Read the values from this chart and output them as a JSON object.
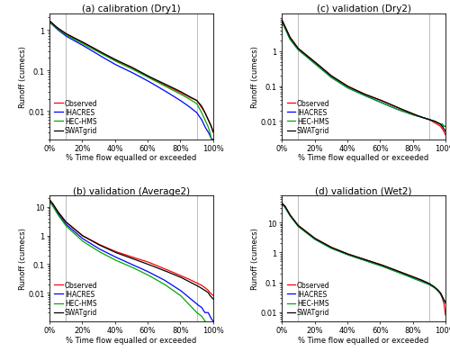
{
  "panels": [
    {
      "title": "(a) calibration (Dry1)",
      "row": 0,
      "col": 0,
      "ylim": [
        0.002,
        2.5
      ],
      "yticks": [
        0.01,
        0.1,
        1.0
      ],
      "yticklabels": [
        "0.01",
        "0.1",
        "1"
      ],
      "ylabel": "Runoff (cumecs)",
      "vlines": [
        10,
        90
      ],
      "curves": [
        {
          "label": "Observed",
          "color": "#FF0000",
          "lw": 0.9,
          "xp": [
            0,
            2,
            5,
            10,
            20,
            30,
            40,
            50,
            60,
            70,
            80,
            85,
            90,
            93,
            95,
            97,
            98,
            99,
            100
          ],
          "yp": [
            1.65,
            1.4,
            1.1,
            0.8,
            0.5,
            0.3,
            0.18,
            0.12,
            0.07,
            0.045,
            0.028,
            0.022,
            0.018,
            0.012,
            0.009,
            0.006,
            0.005,
            0.004,
            0.003
          ]
        },
        {
          "label": "IHACRES",
          "color": "#0000FF",
          "lw": 0.9,
          "xp": [
            0,
            2,
            5,
            10,
            20,
            30,
            40,
            50,
            60,
            70,
            80,
            85,
            90,
            93,
            95,
            97,
            98,
            99,
            100
          ],
          "yp": [
            1.55,
            1.3,
            1.0,
            0.7,
            0.42,
            0.24,
            0.14,
            0.09,
            0.055,
            0.032,
            0.018,
            0.013,
            0.009,
            0.006,
            0.004,
            0.003,
            0.0025,
            0.002,
            0.002
          ]
        },
        {
          "label": "HEC-HMS",
          "color": "#00AA00",
          "lw": 0.9,
          "xp": [
            0,
            2,
            5,
            10,
            20,
            30,
            40,
            50,
            60,
            70,
            80,
            85,
            90,
            93,
            95,
            97,
            98,
            99,
            100
          ],
          "yp": [
            1.6,
            1.35,
            1.05,
            0.75,
            0.46,
            0.28,
            0.17,
            0.11,
            0.068,
            0.042,
            0.026,
            0.02,
            0.015,
            0.009,
            0.006,
            0.004,
            0.003,
            0.002,
            0.001
          ]
        },
        {
          "label": "SWATgrid",
          "color": "#000000",
          "lw": 0.9,
          "xp": [
            0,
            2,
            5,
            10,
            20,
            30,
            40,
            50,
            60,
            70,
            80,
            85,
            90,
            93,
            95,
            97,
            98,
            99,
            100
          ],
          "yp": [
            1.65,
            1.4,
            1.1,
            0.8,
            0.5,
            0.3,
            0.185,
            0.12,
            0.073,
            0.047,
            0.03,
            0.023,
            0.018,
            0.013,
            0.009,
            0.006,
            0.005,
            0.004,
            0.003
          ]
        }
      ]
    },
    {
      "title": "(c) validation (Dry2)",
      "row": 0,
      "col": 1,
      "ylim": [
        0.003,
        12.0
      ],
      "yticks": [
        0.01,
        0.1,
        1.0
      ],
      "yticklabels": [
        "0.01",
        "0.1",
        "1"
      ],
      "ylabel": "Runoff (cumecs)",
      "vlines": [
        10,
        90
      ],
      "curves": [
        {
          "label": "Observed",
          "color": "#FF0000",
          "lw": 0.9,
          "xp": [
            0,
            2,
            5,
            10,
            20,
            30,
            40,
            50,
            60,
            70,
            80,
            85,
            90,
            93,
            95,
            97,
            98,
            99,
            100
          ],
          "yp": [
            8,
            5,
            2.5,
            1.2,
            0.5,
            0.2,
            0.1,
            0.06,
            0.04,
            0.025,
            0.016,
            0.013,
            0.011,
            0.009,
            0.008,
            0.007,
            0.006,
            0.005,
            0.004
          ]
        },
        {
          "label": "IHACRES",
          "color": "#0000FF",
          "lw": 0.9,
          "xp": [
            0,
            2,
            5,
            10,
            20,
            30,
            40,
            50,
            60,
            70,
            80,
            85,
            90,
            93,
            95,
            97,
            98,
            99,
            100
          ],
          "yp": [
            7,
            4.5,
            2.2,
            1.1,
            0.45,
            0.18,
            0.09,
            0.055,
            0.035,
            0.022,
            0.015,
            0.013,
            0.011,
            0.01,
            0.009,
            0.008,
            0.008,
            0.007,
            0.007
          ]
        },
        {
          "label": "HEC-HMS",
          "color": "#00AA00",
          "lw": 0.9,
          "xp": [
            0,
            2,
            5,
            10,
            20,
            30,
            40,
            50,
            60,
            70,
            80,
            85,
            90,
            93,
            95,
            97,
            98,
            99,
            100
          ],
          "yp": [
            7,
            4.5,
            2.2,
            1.1,
            0.45,
            0.18,
            0.09,
            0.055,
            0.035,
            0.022,
            0.015,
            0.013,
            0.011,
            0.01,
            0.009,
            0.008,
            0.008,
            0.007,
            0.007
          ]
        },
        {
          "label": "SWATgrid",
          "color": "#000000",
          "lw": 0.9,
          "xp": [
            0,
            2,
            5,
            10,
            20,
            30,
            40,
            50,
            60,
            70,
            80,
            85,
            90,
            93,
            95,
            97,
            98,
            99,
            100
          ],
          "yp": [
            8,
            5,
            2.5,
            1.2,
            0.5,
            0.2,
            0.1,
            0.06,
            0.04,
            0.025,
            0.016,
            0.013,
            0.011,
            0.01,
            0.009,
            0.008,
            0.007,
            0.006,
            0.005
          ]
        }
      ]
    },
    {
      "title": "(b) validation (Average2)",
      "row": 1,
      "col": 0,
      "ylim": [
        0.001,
        25.0
      ],
      "yticks": [
        0.01,
        0.1,
        1.0,
        10.0
      ],
      "yticklabels": [
        "0.01",
        "0.1",
        "1",
        "10"
      ],
      "ylabel": "Runoff (cumecs)",
      "vlines": [
        10,
        90
      ],
      "curves": [
        {
          "label": "Observed",
          "color": "#FF0000",
          "lw": 0.9,
          "xp": [
            0,
            2,
            5,
            10,
            20,
            30,
            40,
            50,
            60,
            70,
            80,
            85,
            90,
            93,
            95,
            97,
            98,
            99,
            100
          ],
          "yp": [
            18,
            13,
            7,
            3,
            1.0,
            0.5,
            0.28,
            0.18,
            0.12,
            0.07,
            0.04,
            0.03,
            0.022,
            0.018,
            0.015,
            0.012,
            0.01,
            0.009,
            0.008
          ]
        },
        {
          "label": "IHACRES",
          "color": "#0000FF",
          "lw": 0.9,
          "xp": [
            0,
            2,
            5,
            10,
            20,
            30,
            40,
            50,
            60,
            70,
            80,
            85,
            90,
            93,
            95,
            97,
            98,
            99,
            100
          ],
          "yp": [
            16,
            11,
            6,
            2.5,
            0.8,
            0.35,
            0.18,
            0.1,
            0.055,
            0.028,
            0.012,
            0.007,
            0.004,
            0.003,
            0.002,
            0.002,
            0.0015,
            0.0012,
            0.001
          ]
        },
        {
          "label": "HEC-HMS",
          "color": "#00AA00",
          "lw": 0.9,
          "xp": [
            0,
            2,
            5,
            10,
            20,
            30,
            40,
            50,
            60,
            70,
            80,
            85,
            90,
            93,
            95,
            97,
            98,
            99,
            100
          ],
          "yp": [
            16,
            11,
            5.5,
            2.2,
            0.65,
            0.28,
            0.14,
            0.08,
            0.042,
            0.02,
            0.008,
            0.004,
            0.002,
            0.0015,
            0.001,
            0.0008,
            0.0007,
            0.0006,
            0.0005
          ]
        },
        {
          "label": "SWATgrid",
          "color": "#000000",
          "lw": 0.9,
          "xp": [
            0,
            2,
            5,
            10,
            20,
            30,
            40,
            50,
            60,
            70,
            80,
            85,
            90,
            93,
            95,
            97,
            98,
            99,
            100
          ],
          "yp": [
            18,
            13,
            7,
            3,
            1.0,
            0.48,
            0.26,
            0.16,
            0.1,
            0.06,
            0.035,
            0.025,
            0.018,
            0.014,
            0.012,
            0.01,
            0.008,
            0.007,
            0.006
          ]
        }
      ]
    },
    {
      "title": "(d) validation (Wet2)",
      "row": 1,
      "col": 1,
      "ylim": [
        0.005,
        80.0
      ],
      "yticks": [
        0.01,
        0.1,
        1.0,
        10.0
      ],
      "yticklabels": [
        "0.01",
        "0.1",
        "1",
        "10"
      ],
      "ylabel": "Runoff (cumecs)",
      "vlines": [
        10,
        90
      ],
      "curves": [
        {
          "label": "Observed",
          "color": "#FF0000",
          "lw": 0.9,
          "xp": [
            0,
            2,
            5,
            10,
            20,
            30,
            40,
            50,
            60,
            70,
            80,
            85,
            90,
            93,
            95,
            97,
            98,
            99,
            100
          ],
          "yp": [
            45,
            35,
            18,
            8,
            3,
            1.5,
            0.9,
            0.6,
            0.4,
            0.25,
            0.15,
            0.12,
            0.09,
            0.07,
            0.055,
            0.04,
            0.03,
            0.02,
            0.008
          ]
        },
        {
          "label": "IHACRES",
          "color": "#0000FF",
          "lw": 0.9,
          "xp": [
            0,
            2,
            5,
            10,
            20,
            30,
            40,
            50,
            60,
            70,
            80,
            85,
            90,
            93,
            95,
            97,
            98,
            99,
            100
          ],
          "yp": [
            42,
            32,
            17,
            7.5,
            2.8,
            1.4,
            0.85,
            0.56,
            0.37,
            0.23,
            0.14,
            0.11,
            0.085,
            0.068,
            0.055,
            0.042,
            0.032,
            0.025,
            0.02
          ]
        },
        {
          "label": "HEC-HMS",
          "color": "#00AA00",
          "lw": 0.9,
          "xp": [
            0,
            2,
            5,
            10,
            20,
            30,
            40,
            50,
            60,
            70,
            80,
            85,
            90,
            93,
            95,
            97,
            98,
            99,
            100
          ],
          "yp": [
            42,
            32,
            17,
            7.5,
            2.8,
            1.4,
            0.85,
            0.56,
            0.37,
            0.23,
            0.14,
            0.11,
            0.085,
            0.068,
            0.055,
            0.042,
            0.032,
            0.025,
            0.02
          ]
        },
        {
          "label": "SWATgrid",
          "color": "#000000",
          "lw": 0.9,
          "xp": [
            0,
            2,
            5,
            10,
            20,
            30,
            40,
            50,
            60,
            70,
            80,
            85,
            90,
            93,
            95,
            97,
            98,
            99,
            100
          ],
          "yp": [
            45,
            35,
            18,
            8,
            3,
            1.5,
            0.9,
            0.6,
            0.4,
            0.25,
            0.155,
            0.122,
            0.092,
            0.072,
            0.058,
            0.044,
            0.034,
            0.026,
            0.022
          ]
        }
      ]
    }
  ],
  "xlabel": "% Time flow equalled or exceeded",
  "xticks": [
    0,
    20,
    40,
    60,
    80,
    100
  ],
  "xticklabels": [
    "0%",
    "20%",
    "40%",
    "60%",
    "80%",
    "100%"
  ],
  "grey_line_color": "#BBBBBB",
  "legend_fontsize": 5.5,
  "axis_fontsize": 6.5,
  "title_fontsize": 7.5
}
